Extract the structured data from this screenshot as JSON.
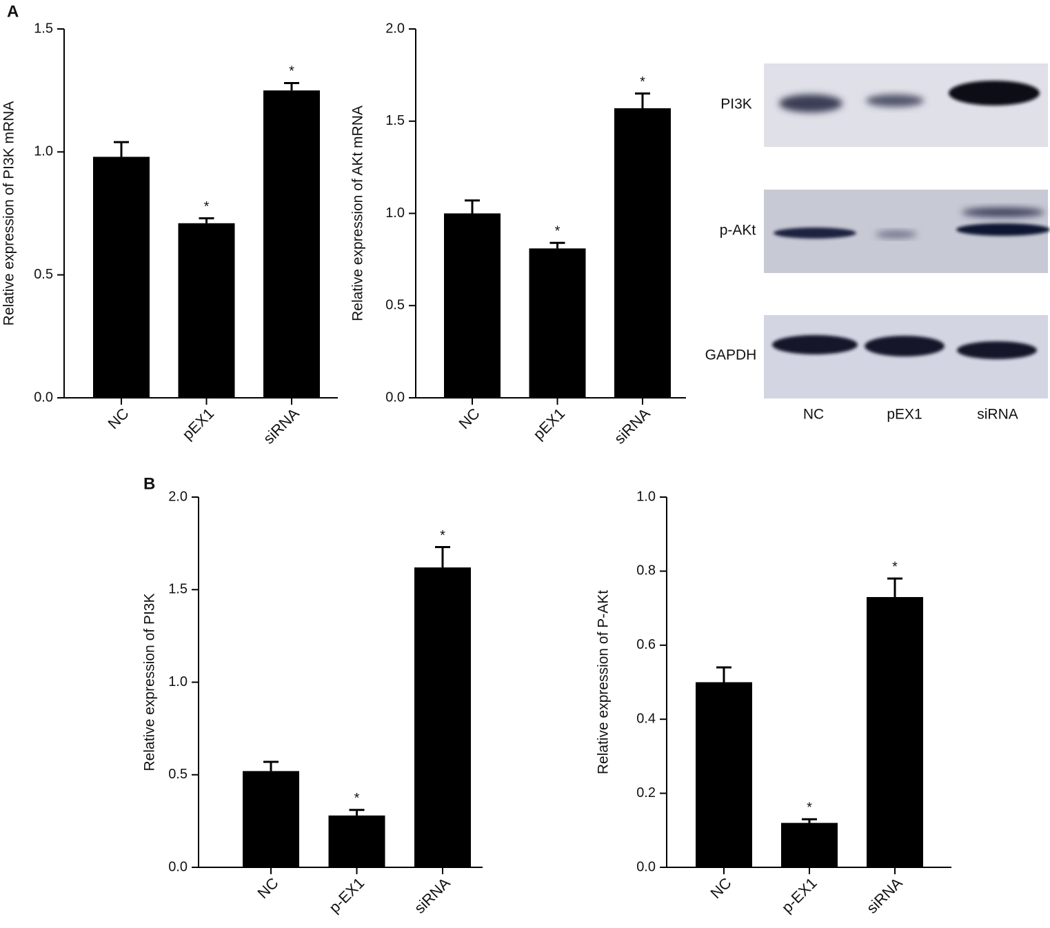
{
  "panel_labels": [
    "A",
    "B"
  ],
  "blot": {
    "rows": [
      "PI3K",
      "p-AKt",
      "GAPDH"
    ],
    "lanes": [
      "NC",
      "pEX1",
      "siRNA"
    ]
  },
  "chart_data": [
    {
      "type": "bar",
      "y_label": "Relative expression of PI3K mRNA",
      "categories": [
        "NC",
        "pEX1",
        "siRNA"
      ],
      "values": [
        0.98,
        0.71,
        1.25
      ],
      "errors": [
        0.06,
        0.02,
        0.03
      ],
      "significance": [
        null,
        "*",
        "*"
      ],
      "color": "#000000",
      "ylim": [
        0,
        1.5
      ],
      "yticks": [
        {
          "value": 0,
          "label": "0.0"
        },
        0.5,
        {
          "value": 1,
          "label": "1.0"
        },
        1.5
      ]
    },
    {
      "type": "bar",
      "y_label": "Relative expression of AKt mRNA",
      "categories": [
        "NC",
        "pEX1",
        "siRNA"
      ],
      "values": [
        1.0,
        0.81,
        1.57
      ],
      "errors": [
        0.07,
        0.03,
        0.08
      ],
      "significance": [
        null,
        "*",
        "*"
      ],
      "color": "#000000",
      "ylim": [
        0,
        2
      ],
      "yticks": [
        {
          "value": 0,
          "label": "0.0"
        },
        0.5,
        {
          "value": 1,
          "label": "1.0"
        },
        1.5,
        {
          "value": 2,
          "label": "2.0"
        }
      ]
    },
    {
      "type": "bar",
      "y_label": "Relative expression of PI3K",
      "categories": [
        "NC",
        "p-EX1",
        "siRNA"
      ],
      "values": [
        0.52,
        0.28,
        1.62
      ],
      "errors": [
        0.05,
        0.03,
        0.11
      ],
      "significance": [
        null,
        "*",
        "*"
      ],
      "color": "#000000",
      "ylim": [
        0,
        2
      ],
      "yticks": [
        {
          "value": 0,
          "label": "0.0"
        },
        0.5,
        {
          "value": 1,
          "label": "1.0"
        },
        1.5,
        {
          "value": 2,
          "label": "2.0"
        }
      ]
    },
    {
      "type": "bar",
      "y_label": "Relative expression of P-AKt",
      "categories": [
        "NC",
        "p-EX1",
        "siRNA"
      ],
      "values": [
        0.5,
        0.12,
        0.73
      ],
      "errors": [
        0.04,
        0.01,
        0.05
      ],
      "significance": [
        null,
        "*",
        "*"
      ],
      "color": "#000000",
      "ylim": [
        0,
        1
      ],
      "yticks": [
        {
          "value": 0,
          "label": "0.0"
        },
        0.2,
        0.4,
        0.6,
        0.8,
        {
          "value": 1,
          "label": "1.0"
        }
      ]
    }
  ]
}
